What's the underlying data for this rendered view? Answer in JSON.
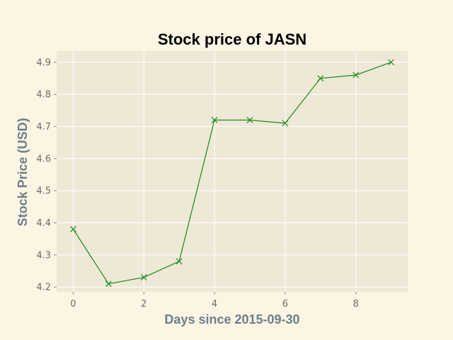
{
  "chart_data": {
    "type": "line",
    "title": "Stock price of JASN",
    "xlabel": "Days since 2015-09-30",
    "ylabel": "Stock Price (USD)",
    "x": [
      0,
      1,
      2,
      3,
      4,
      5,
      6,
      7,
      8,
      9
    ],
    "series": [
      {
        "values": [
          4.38,
          4.21,
          4.23,
          4.28,
          4.72,
          4.72,
          4.71,
          4.85,
          4.86,
          4.9
        ]
      }
    ],
    "xlim": [
      -0.47,
      9.47
    ],
    "ylim": [
      4.185,
      4.935
    ],
    "xticks": [
      0,
      2,
      4,
      6,
      8
    ],
    "yticks": [
      4.2,
      4.3,
      4.4,
      4.5,
      4.6,
      4.7,
      4.8,
      4.9
    ],
    "marker": "x",
    "grid": true,
    "colors": {
      "page_background": "#fcf5e3",
      "plot_background": "#eee8d6",
      "grid": "#ffffff",
      "line": "#1a8a1a",
      "title": "#000000",
      "axis_label": "#6b7f8a",
      "tick_label": "#6b6b6b"
    }
  }
}
